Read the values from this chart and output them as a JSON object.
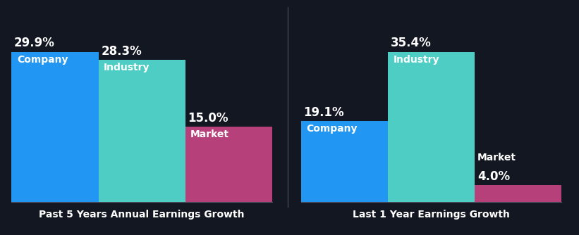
{
  "background_color": "#131722",
  "groups": [
    {
      "title": "Past 5 Years Annual Earnings Growth",
      "bars": [
        {
          "label": "Company",
          "value": 29.9,
          "color": "#2196f3"
        },
        {
          "label": "Industry",
          "value": 28.3,
          "color": "#4ecdc4"
        },
        {
          "label": "Market",
          "value": 15.0,
          "color": "#b5407a"
        }
      ]
    },
    {
      "title": "Last 1 Year Earnings Growth",
      "bars": [
        {
          "label": "Company",
          "value": 19.1,
          "color": "#2196f3"
        },
        {
          "label": "Industry",
          "value": 35.4,
          "color": "#4ecdc4"
        },
        {
          "label": "Market",
          "value": 4.0,
          "color": "#b5407a"
        }
      ]
    }
  ],
  "value_fontsize": 12,
  "label_fontsize": 10,
  "title_fontsize": 10,
  "title_color": "#ffffff",
  "value_color": "#ffffff",
  "label_color": "#ffffff",
  "divider_color": "#444455",
  "bottom_line_color": "#555566"
}
